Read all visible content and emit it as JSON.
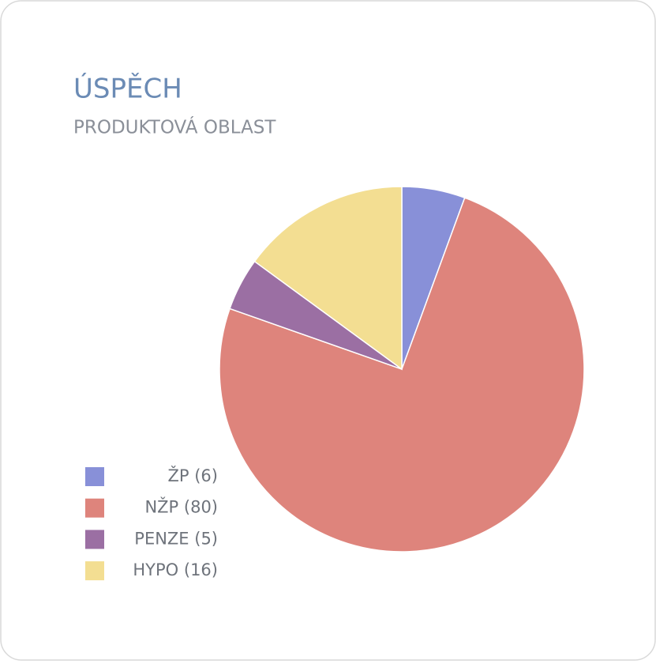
{
  "chart_data": {
    "type": "pie",
    "title": "ÚSPĚCH",
    "subtitle": "PRODUKTOVÁ OBLAST",
    "categories": [
      "ŽP (6)",
      "NŽP (80)",
      "PENZE (5)",
      "HYPO (16)"
    ],
    "values": [
      6,
      80,
      5,
      16
    ],
    "colors": [
      "#8890d8",
      "#de847c",
      "#9b6fa3",
      "#f3de92"
    ],
    "legend": "left"
  }
}
